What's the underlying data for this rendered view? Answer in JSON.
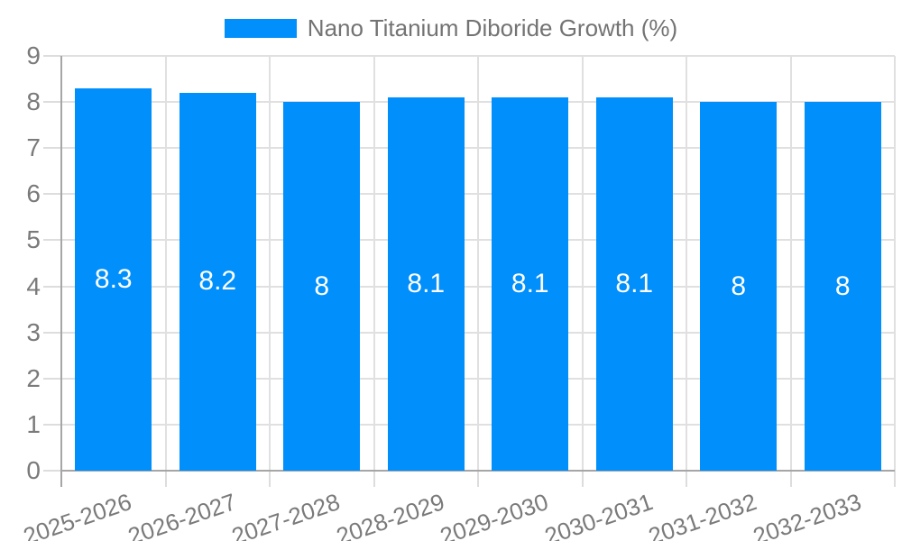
{
  "legend": {
    "label": "Nano Titanium Diboride Growth (%)"
  },
  "colors": {
    "bar": "#008FFB",
    "grid": "#e0e0e0",
    "tick": "#dddddd",
    "axis": "#a6a6a6",
    "axis_text": "#7a7a7a",
    "legend_text": "#737373",
    "value_label": "#ffffff",
    "background": "#ffffff"
  },
  "chart_data": {
    "type": "bar",
    "title": "",
    "legend": "Nano Titanium Diboride Growth (%)",
    "legend_position": "top",
    "categories": [
      "2025-2026",
      "2026-2027",
      "2027-2028",
      "2028-2029",
      "2029-2030",
      "2030-2031",
      "2031-2032",
      "2032-2033"
    ],
    "values": [
      8.3,
      8.2,
      8,
      8.1,
      8.1,
      8.1,
      8,
      8
    ],
    "value_labels": [
      "8.3",
      "8.2",
      "8",
      "8.1",
      "8.1",
      "8.1",
      "8",
      "8"
    ],
    "xlabel": "",
    "ylabel": "",
    "ylim": [
      0,
      9
    ],
    "yticks": [
      0,
      1,
      2,
      3,
      4,
      5,
      6,
      7,
      8,
      9
    ],
    "grid": true,
    "value_label_position": "center-inside",
    "x_label_rotation_deg": -19
  }
}
